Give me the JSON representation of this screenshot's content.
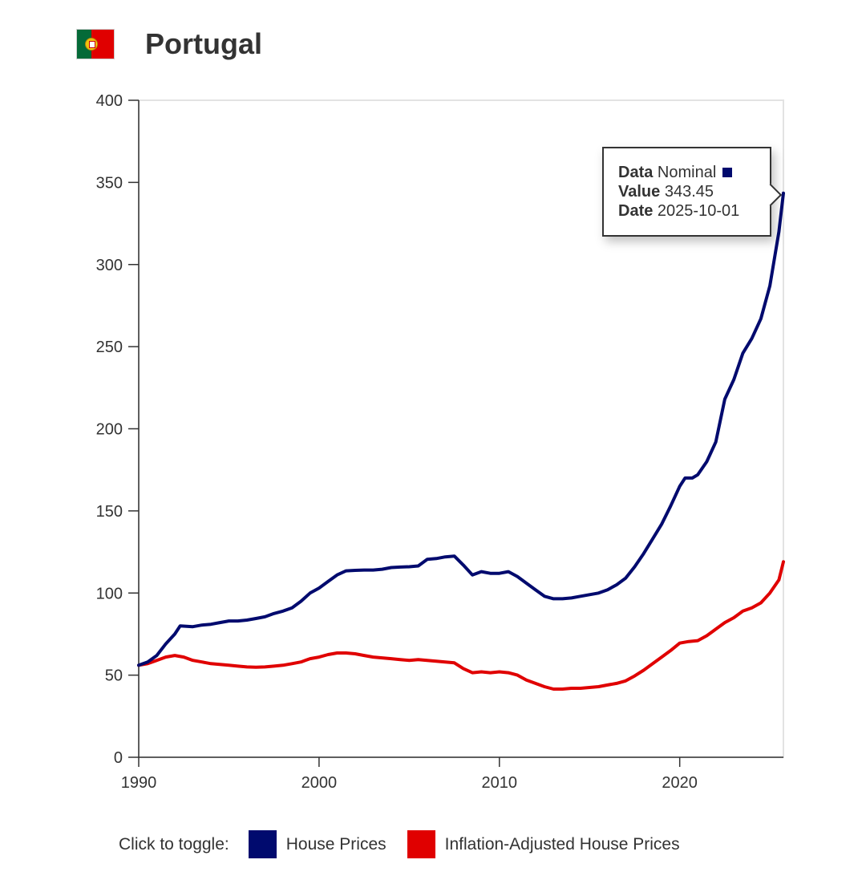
{
  "header": {
    "title": "Portugal",
    "flag_icon": "portugal-flag-icon"
  },
  "tooltip": {
    "data_label": "Data",
    "data_value": "Nominal",
    "value_label": "Value",
    "value_value": "343.45",
    "date_label": "Date",
    "date_value": "2025-10-01"
  },
  "legend": {
    "prompt": "Click to toggle:",
    "items": [
      {
        "label": "House Prices",
        "color": "#000a6e"
      },
      {
        "label": "Inflation-Adjusted House Prices",
        "color": "#e00000"
      }
    ]
  },
  "chart_data": {
    "type": "line",
    "title": "Portugal",
    "xlim": [
      1990,
      2025.75
    ],
    "ylim": [
      0,
      400
    ],
    "x_ticks": [
      1990,
      2000,
      2010,
      2020
    ],
    "y_ticks": [
      0,
      50,
      100,
      150,
      200,
      250,
      300,
      350,
      400
    ],
    "grid": false,
    "legend_position": "bottom",
    "series": [
      {
        "name": "House Prices",
        "color": "#000a6e",
        "points": [
          [
            1990,
            56
          ],
          [
            1990.5,
            58
          ],
          [
            1991,
            62
          ],
          [
            1991.5,
            69
          ],
          [
            1992,
            75
          ],
          [
            1992.3,
            80
          ],
          [
            1993,
            79.5
          ],
          [
            1993.5,
            80.5
          ],
          [
            1994,
            81
          ],
          [
            1994.5,
            82
          ],
          [
            1995,
            83
          ],
          [
            1995.5,
            83
          ],
          [
            1996,
            83.5
          ],
          [
            1996.5,
            84.5
          ],
          [
            1997,
            85.5
          ],
          [
            1997.5,
            87.5
          ],
          [
            1998,
            89
          ],
          [
            1998.5,
            91
          ],
          [
            1999,
            95
          ],
          [
            1999.5,
            100
          ],
          [
            2000,
            103
          ],
          [
            2000.5,
            107
          ],
          [
            2001,
            111
          ],
          [
            2001.5,
            113.5
          ],
          [
            2002,
            113.8
          ],
          [
            2002.5,
            114
          ],
          [
            2003,
            114
          ],
          [
            2003.5,
            114.5
          ],
          [
            2004,
            115.5
          ],
          [
            2004.5,
            115.8
          ],
          [
            2005,
            116
          ],
          [
            2005.5,
            116.5
          ],
          [
            2006,
            120.5
          ],
          [
            2006.5,
            121
          ],
          [
            2007,
            122
          ],
          [
            2007.5,
            122.5
          ],
          [
            2008,
            117
          ],
          [
            2008.5,
            111
          ],
          [
            2009,
            113
          ],
          [
            2009.5,
            112
          ],
          [
            2010,
            112
          ],
          [
            2010.5,
            113
          ],
          [
            2011,
            110
          ],
          [
            2011.5,
            106
          ],
          [
            2012,
            102
          ],
          [
            2012.5,
            98
          ],
          [
            2013,
            96.5
          ],
          [
            2013.5,
            96.5
          ],
          [
            2014,
            97
          ],
          [
            2014.5,
            98
          ],
          [
            2015,
            99
          ],
          [
            2015.5,
            100
          ],
          [
            2016,
            102
          ],
          [
            2016.5,
            105
          ],
          [
            2017,
            109
          ],
          [
            2017.5,
            116
          ],
          [
            2018,
            124
          ],
          [
            2018.5,
            133
          ],
          [
            2019,
            142
          ],
          [
            2019.5,
            153
          ],
          [
            2020,
            165
          ],
          [
            2020.3,
            170
          ],
          [
            2020.7,
            170
          ],
          [
            2021,
            172
          ],
          [
            2021.5,
            180
          ],
          [
            2022,
            192
          ],
          [
            2022.5,
            218
          ],
          [
            2023,
            230
          ],
          [
            2023.5,
            246
          ],
          [
            2024,
            255
          ],
          [
            2024.5,
            267
          ],
          [
            2025,
            287
          ],
          [
            2025.5,
            320
          ],
          [
            2025.75,
            343.45
          ]
        ]
      },
      {
        "name": "Inflation-Adjusted House Prices",
        "color": "#e00000",
        "points": [
          [
            1990,
            56
          ],
          [
            1990.5,
            57
          ],
          [
            1991,
            59
          ],
          [
            1991.5,
            61
          ],
          [
            1992,
            62
          ],
          [
            1992.5,
            61
          ],
          [
            1993,
            59
          ],
          [
            1993.5,
            58
          ],
          [
            1994,
            57
          ],
          [
            1994.5,
            56.5
          ],
          [
            1995,
            56
          ],
          [
            1995.5,
            55.5
          ],
          [
            1996,
            55
          ],
          [
            1996.5,
            54.8
          ],
          [
            1997,
            55
          ],
          [
            1997.5,
            55.5
          ],
          [
            1998,
            56
          ],
          [
            1998.5,
            57
          ],
          [
            1999,
            58
          ],
          [
            1999.5,
            60
          ],
          [
            2000,
            61
          ],
          [
            2000.5,
            62.5
          ],
          [
            2001,
            63.5
          ],
          [
            2001.5,
            63.5
          ],
          [
            2002,
            63
          ],
          [
            2002.5,
            62
          ],
          [
            2003,
            61
          ],
          [
            2003.5,
            60.5
          ],
          [
            2004,
            60
          ],
          [
            2004.5,
            59.5
          ],
          [
            2005,
            59
          ],
          [
            2005.5,
            59.5
          ],
          [
            2006,
            59
          ],
          [
            2006.5,
            58.5
          ],
          [
            2007,
            58
          ],
          [
            2007.5,
            57.5
          ],
          [
            2008,
            54
          ],
          [
            2008.5,
            51.5
          ],
          [
            2009,
            52
          ],
          [
            2009.5,
            51.5
          ],
          [
            2010,
            52
          ],
          [
            2010.5,
            51.5
          ],
          [
            2011,
            50
          ],
          [
            2011.5,
            47
          ],
          [
            2012,
            45
          ],
          [
            2012.5,
            43
          ],
          [
            2013,
            41.5
          ],
          [
            2013.5,
            41.5
          ],
          [
            2014,
            42
          ],
          [
            2014.5,
            42
          ],
          [
            2015,
            42.5
          ],
          [
            2015.5,
            43
          ],
          [
            2016,
            44
          ],
          [
            2016.5,
            45
          ],
          [
            2017,
            46.5
          ],
          [
            2017.5,
            49.5
          ],
          [
            2018,
            53
          ],
          [
            2018.5,
            57
          ],
          [
            2019,
            61
          ],
          [
            2019.5,
            65
          ],
          [
            2020,
            69.5
          ],
          [
            2020.5,
            70.5
          ],
          [
            2021,
            71
          ],
          [
            2021.5,
            74
          ],
          [
            2022,
            78
          ],
          [
            2022.5,
            82
          ],
          [
            2023,
            85
          ],
          [
            2023.5,
            89
          ],
          [
            2024,
            91
          ],
          [
            2024.5,
            94
          ],
          [
            2025,
            100
          ],
          [
            2025.5,
            108
          ],
          [
            2025.75,
            119
          ]
        ]
      }
    ]
  }
}
